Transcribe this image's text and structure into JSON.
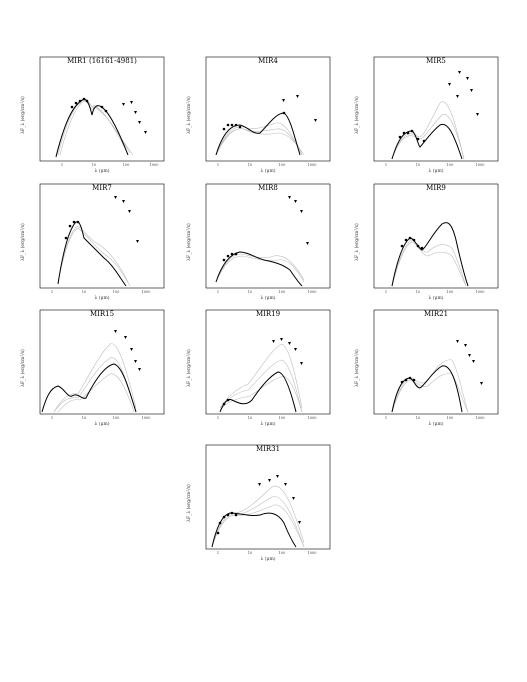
{
  "figure": {
    "panels": [
      {
        "id": "mir1",
        "title": "MIR1 (16161-4981)",
        "xlabel": "λ (μm)",
        "ylabel": "λF_λ (erg/cm²/s)",
        "xticks": [
          "1",
          "10",
          "100",
          "1000"
        ]
      },
      {
        "id": "mir4",
        "title": "MIR4",
        "xlabel": "λ (μm)",
        "ylabel": "λF_λ (erg/cm²/s)",
        "xticks": [
          "1",
          "10",
          "100",
          "1000"
        ]
      },
      {
        "id": "mir5",
        "title": "MIR5",
        "xlabel": "λ (μm)",
        "ylabel": "λF_λ (erg/cm²/s)",
        "xticks": [
          "1",
          "10",
          "100",
          "1000"
        ]
      },
      {
        "id": "mir7",
        "title": "MIR7",
        "xlabel": "λ (μm)",
        "ylabel": "λF_λ (erg/cm²/s)",
        "xticks": [
          "1",
          "10",
          "100",
          "1000"
        ]
      },
      {
        "id": "mir8",
        "title": "MIR8",
        "xlabel": "λ (μm)",
        "ylabel": "λF_λ (erg/cm²/s)",
        "xticks": [
          "1",
          "10",
          "100",
          "1000"
        ]
      },
      {
        "id": "mir9",
        "title": "MIR9",
        "xlabel": "λ (μm)",
        "ylabel": "λF_λ (erg/cm²/s)",
        "xticks": [
          "1",
          "10",
          "100",
          "1000"
        ]
      },
      {
        "id": "mir15",
        "title": "MIR15",
        "xlabel": "λ (μm)",
        "ylabel": "λF_λ (erg/cm²/s)",
        "xticks": [
          "1",
          "10",
          "100",
          "1000"
        ]
      },
      {
        "id": "mir19",
        "title": "MIR19",
        "xlabel": "λ (μm)",
        "ylabel": "λF_λ (erg/cm²/s)",
        "xticks": [
          "1",
          "10",
          "100",
          "1000"
        ]
      },
      {
        "id": "mir21",
        "title": "MIR21",
        "xlabel": "λ (μm)",
        "ylabel": "λF_λ (erg/cm²/s)",
        "xticks": [
          "1",
          "10",
          "100",
          "1000"
        ]
      },
      {
        "id": "mir31",
        "title": "MIR31",
        "xlabel": "λ (μm)",
        "ylabel": "λF_λ (erg/cm²/s)",
        "xticks": [
          "1",
          "10",
          "100",
          "1000"
        ]
      }
    ]
  },
  "colors": {
    "best_fit": "#000000",
    "other_fits": "#bdbdbd",
    "frame": "#000000"
  }
}
